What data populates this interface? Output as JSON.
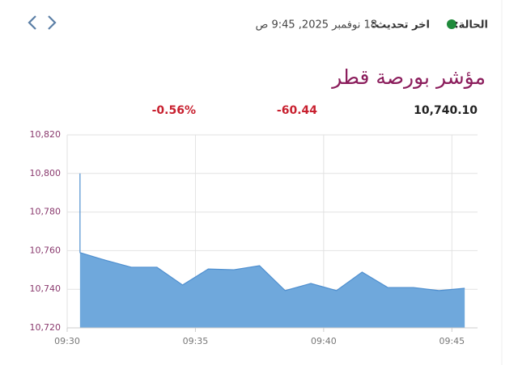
{
  "header": {
    "status_label": "الحالة:",
    "updated_label": "اخر تحديث:",
    "updated_value": "18 نوفمبر 2025, 9:45 ص"
  },
  "summary": {
    "last": "10,740.10",
    "change": "-60.44",
    "change_pct": "-0.56%"
  },
  "chart_data": {
    "type": "area",
    "title": "مؤشر بورصة قطر",
    "x": [
      570.5,
      570.5,
      571.5,
      572.5,
      573.5,
      574.5,
      575.5,
      576.5,
      577.5,
      578.5,
      579.5,
      580.5,
      581.5,
      582.5,
      583.5,
      584.5,
      585.5
    ],
    "values": [
      10800,
      10759,
      10755,
      10751.4,
      10751.4,
      10742.2,
      10750.5,
      10750.1,
      10752.2,
      10739.3,
      10743,
      10739.3,
      10748.9,
      10740.9,
      10740.9,
      10739.3,
      10740.5
    ],
    "color": "#6fa8dc",
    "xlim": [
      570,
      586
    ],
    "xticks": [
      {
        "value": 570,
        "label": "09:30"
      },
      {
        "value": 575,
        "label": "09:35"
      },
      {
        "value": 580,
        "label": "09:40"
      },
      {
        "value": 585,
        "label": "09:45"
      }
    ],
    "ylim": [
      10720,
      10820
    ],
    "yticks": [
      {
        "value": 10720,
        "label": "10,720"
      },
      {
        "value": 10740,
        "label": "10,740"
      },
      {
        "value": 10760,
        "label": "10,760"
      },
      {
        "value": 10780,
        "label": "10,780"
      },
      {
        "value": 10800,
        "label": "10,800"
      },
      {
        "value": 10820,
        "label": "10,820"
      }
    ],
    "grid": true
  }
}
